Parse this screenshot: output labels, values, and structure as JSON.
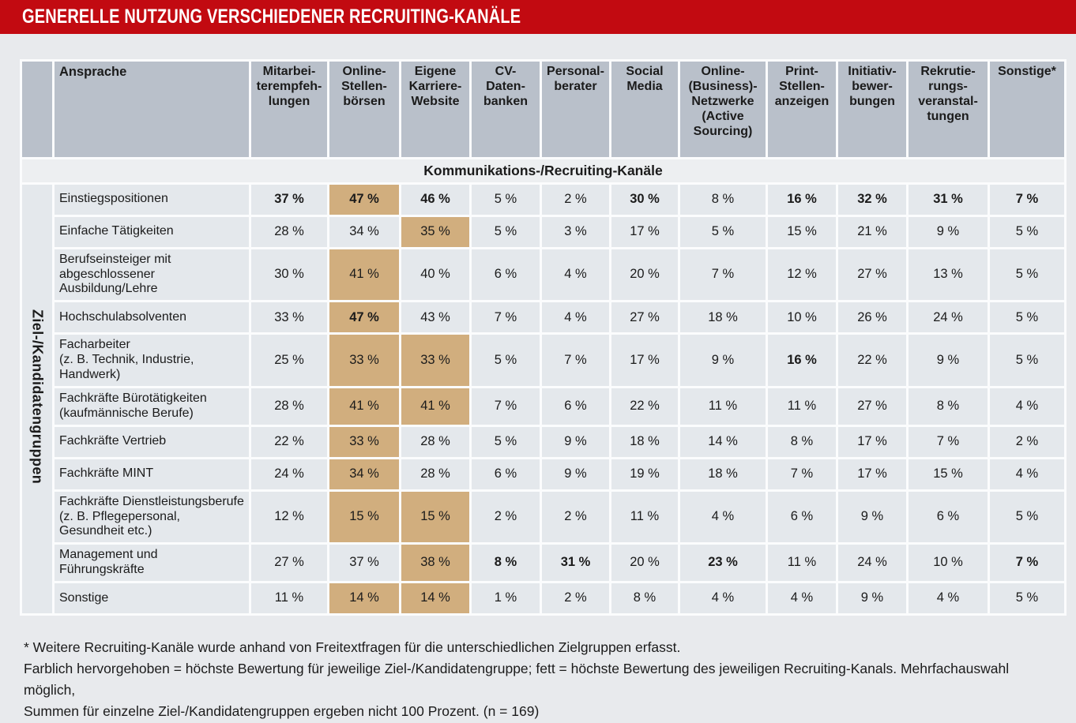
{
  "title": "GENERELLE NUTZUNG VERSCHIEDENER RECRUITING-KANÄLE",
  "table": {
    "corner_label": "Ansprache",
    "section_label": "Kommunikations-/Recruiting-Kanäle",
    "row_axis_label": "Ziel-/Kandidatengruppen",
    "unit": "%",
    "columns": [
      "Mitarbei-\nterempfeh-\nlungen",
      "Online-\nStellen-\nbörsen",
      "Eigene\nKarriere-\nWebsite",
      "CV-\nDaten-\nbanken",
      "Personal-\nberater",
      "Social\nMedia",
      "Online-\n(Business)-\nNetzwerke\n(Active\nSourcing)",
      "Print-\nStellen-\nanzeigen",
      "Initiativ-\nbewer-\nbungen",
      "Rekrutie-\nrungs-\nveranstal-\ntungen",
      "Sonstige*"
    ],
    "rows": [
      {
        "label": "Einstiegspositionen",
        "cells": [
          {
            "v": 37,
            "b": true
          },
          {
            "v": 47,
            "b": true,
            "h": true
          },
          {
            "v": 46,
            "b": true
          },
          {
            "v": 5
          },
          {
            "v": 2
          },
          {
            "v": 30,
            "b": true
          },
          {
            "v": 8
          },
          {
            "v": 16,
            "b": true
          },
          {
            "v": 32,
            "b": true
          },
          {
            "v": 31,
            "b": true
          },
          {
            "v": 7,
            "b": true
          }
        ]
      },
      {
        "label": "Einfache Tätigkeiten",
        "cells": [
          {
            "v": 28
          },
          {
            "v": 34
          },
          {
            "v": 35,
            "h": true
          },
          {
            "v": 5
          },
          {
            "v": 3
          },
          {
            "v": 17
          },
          {
            "v": 5
          },
          {
            "v": 15
          },
          {
            "v": 21
          },
          {
            "v": 9
          },
          {
            "v": 5
          }
        ]
      },
      {
        "label": "Berufseinsteiger mit abgeschlossener Ausbildung/Lehre",
        "cells": [
          {
            "v": 30
          },
          {
            "v": 41,
            "h": true
          },
          {
            "v": 40
          },
          {
            "v": 6
          },
          {
            "v": 4
          },
          {
            "v": 20
          },
          {
            "v": 7
          },
          {
            "v": 12
          },
          {
            "v": 27
          },
          {
            "v": 13
          },
          {
            "v": 5
          }
        ]
      },
      {
        "label": "Hochschulabsolventen",
        "cells": [
          {
            "v": 33
          },
          {
            "v": 47,
            "b": true,
            "h": true
          },
          {
            "v": 43
          },
          {
            "v": 7
          },
          {
            "v": 4
          },
          {
            "v": 27
          },
          {
            "v": 18
          },
          {
            "v": 10
          },
          {
            "v": 26
          },
          {
            "v": 24
          },
          {
            "v": 5
          }
        ]
      },
      {
        "label": "Facharbeiter\n(z. B. Technik, Industrie, Handwerk)",
        "cells": [
          {
            "v": 25
          },
          {
            "v": 33,
            "h": true
          },
          {
            "v": 33,
            "h": true
          },
          {
            "v": 5
          },
          {
            "v": 7
          },
          {
            "v": 17
          },
          {
            "v": 9
          },
          {
            "v": 16,
            "b": true
          },
          {
            "v": 22
          },
          {
            "v": 9
          },
          {
            "v": 5
          }
        ]
      },
      {
        "label": "Fachkräfte Bürotätigkeiten\n(kaufmännische Berufe)",
        "cells": [
          {
            "v": 28
          },
          {
            "v": 41,
            "h": true
          },
          {
            "v": 41,
            "h": true
          },
          {
            "v": 7
          },
          {
            "v": 6
          },
          {
            "v": 22
          },
          {
            "v": 11
          },
          {
            "v": 11
          },
          {
            "v": 27
          },
          {
            "v": 8
          },
          {
            "v": 4
          }
        ]
      },
      {
        "label": "Fachkräfte Vertrieb",
        "cells": [
          {
            "v": 22
          },
          {
            "v": 33,
            "h": true
          },
          {
            "v": 28
          },
          {
            "v": 5
          },
          {
            "v": 9
          },
          {
            "v": 18
          },
          {
            "v": 14
          },
          {
            "v": 8
          },
          {
            "v": 17
          },
          {
            "v": 7
          },
          {
            "v": 2
          }
        ]
      },
      {
        "label": "Fachkräfte MINT",
        "cells": [
          {
            "v": 24
          },
          {
            "v": 34,
            "h": true
          },
          {
            "v": 28
          },
          {
            "v": 6
          },
          {
            "v": 9
          },
          {
            "v": 19
          },
          {
            "v": 18
          },
          {
            "v": 7
          },
          {
            "v": 17
          },
          {
            "v": 15
          },
          {
            "v": 4
          }
        ]
      },
      {
        "label": "Fachkräfte Dienstleistungsberufe (z. B. Pflegepersonal, Gesundheit etc.)",
        "cells": [
          {
            "v": 12
          },
          {
            "v": 15,
            "h": true
          },
          {
            "v": 15,
            "h": true
          },
          {
            "v": 2
          },
          {
            "v": 2
          },
          {
            "v": 11
          },
          {
            "v": 4
          },
          {
            "v": 6
          },
          {
            "v": 9
          },
          {
            "v": 6
          },
          {
            "v": 5
          }
        ]
      },
      {
        "label": "Management und Führungskräfte",
        "cells": [
          {
            "v": 27
          },
          {
            "v": 37
          },
          {
            "v": 38,
            "h": true
          },
          {
            "v": 8,
            "b": true
          },
          {
            "v": 31,
            "b": true
          },
          {
            "v": 20
          },
          {
            "v": 23,
            "b": true
          },
          {
            "v": 11
          },
          {
            "v": 24
          },
          {
            "v": 10
          },
          {
            "v": 7,
            "b": true
          }
        ]
      },
      {
        "label": "Sonstige",
        "cells": [
          {
            "v": 11
          },
          {
            "v": 14,
            "h": true
          },
          {
            "v": 14,
            "h": true
          },
          {
            "v": 1
          },
          {
            "v": 2
          },
          {
            "v": 8
          },
          {
            "v": 4
          },
          {
            "v": 4
          },
          {
            "v": 9
          },
          {
            "v": 4
          },
          {
            "v": 5
          }
        ]
      }
    ]
  },
  "footnotes": [
    "* Weitere Recruiting-Kanäle wurde anhand von Freitextfragen für die unterschiedlichen Zielgruppen erfasst.",
    "Farblich hervorgehoben = höchste Bewertung für jeweilige Ziel-/Kandidatengruppe; fett = höchste Bewertung des jeweiligen Recruiting-Kanals. Mehrfachauswahl möglich,",
    "Summen für einzelne Ziel-/Kandidatengruppen ergeben nicht 100 Prozent. (n = 169)"
  ],
  "colors": {
    "accent": "#c20a11",
    "head-bg": "#b9c0ca",
    "cell-bg": "#e4e8ec",
    "banner-bg": "#edeff1",
    "hl": "#d1ae7e",
    "page-bg": "#e8eaed",
    "gap": "#fbfcfd",
    "text": "#1b1b1b"
  },
  "chart_data": {
    "type": "table",
    "title": "GENERELLE NUTZUNG VERSCHIEDENER RECRUITING-KANÄLE",
    "section_header": "Kommunikations-/Recruiting-Kanäle",
    "row_axis": "Ziel-/Kandidatengruppen",
    "unit": "%",
    "n": 169,
    "columns": [
      "Mitarbeiterempfehlungen",
      "Online-Stellenbörsen",
      "Eigene Karriere-Website",
      "CV-Datenbanken",
      "Personalberater",
      "Social Media",
      "Online-(Business)-Netzwerke (Active Sourcing)",
      "Print-Stellenanzeigen",
      "Initiativbewerbungen",
      "Rekrutierungsveranstaltungen",
      "Sonstige"
    ],
    "rows": [
      {
        "label": "Einstiegspositionen",
        "values": [
          37,
          47,
          46,
          5,
          2,
          30,
          8,
          16,
          32,
          31,
          7
        ]
      },
      {
        "label": "Einfache Tätigkeiten",
        "values": [
          28,
          34,
          35,
          5,
          3,
          17,
          5,
          15,
          21,
          9,
          5
        ]
      },
      {
        "label": "Berufseinsteiger mit abgeschlossener Ausbildung/Lehre",
        "values": [
          30,
          41,
          40,
          6,
          4,
          20,
          7,
          12,
          27,
          13,
          5
        ]
      },
      {
        "label": "Hochschulabsolventen",
        "values": [
          33,
          47,
          43,
          7,
          4,
          27,
          18,
          10,
          26,
          24,
          5
        ]
      },
      {
        "label": "Facharbeiter (z. B. Technik, Industrie, Handwerk)",
        "values": [
          25,
          33,
          33,
          5,
          7,
          17,
          9,
          16,
          22,
          9,
          5
        ]
      },
      {
        "label": "Fachkräfte Bürotätigkeiten (kaufmännische Berufe)",
        "values": [
          28,
          41,
          41,
          7,
          6,
          22,
          11,
          11,
          27,
          8,
          4
        ]
      },
      {
        "label": "Fachkräfte Vertrieb",
        "values": [
          22,
          33,
          28,
          5,
          9,
          18,
          14,
          8,
          17,
          7,
          2
        ]
      },
      {
        "label": "Fachkräfte MINT",
        "values": [
          24,
          34,
          28,
          6,
          9,
          19,
          18,
          7,
          17,
          15,
          4
        ]
      },
      {
        "label": "Fachkräfte Dienstleistungsberufe (z. B. Pflegepersonal, Gesundheit etc.)",
        "values": [
          12,
          15,
          15,
          2,
          2,
          11,
          4,
          6,
          9,
          6,
          5
        ]
      },
      {
        "label": "Management und Führungskräfte",
        "values": [
          27,
          37,
          38,
          8,
          31,
          20,
          23,
          11,
          24,
          10,
          7
        ]
      },
      {
        "label": "Sonstige",
        "values": [
          11,
          14,
          14,
          1,
          2,
          8,
          4,
          4,
          9,
          4,
          5
        ]
      }
    ],
    "highlight_rule": "Farblich hervorgehoben = höchste Bewertung für jeweilige Ziel-/Kandidatengruppe",
    "bold_rule": "fett = höchste Bewertung des jeweiligen Recruiting-Kanals",
    "legend_position": "footnote below table"
  }
}
